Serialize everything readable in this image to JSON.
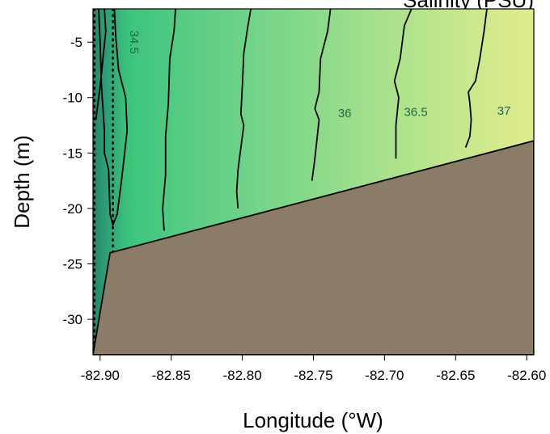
{
  "chart_data": {
    "type": "contour",
    "title": "Salinity (PSU)",
    "xlabel": "Longitude (°W)",
    "ylabel": "Depth (m)",
    "xlim": [
      -82.905,
      -82.595
    ],
    "ylim": [
      -33.2,
      -2
    ],
    "x_ticks": [
      -82.9,
      -82.85,
      -82.8,
      -82.75,
      -82.7,
      -82.65,
      -82.6
    ],
    "x_tick_labels": [
      "-82.90",
      "-82.85",
      "-82.80",
      "-82.75",
      "-82.70",
      "-82.65",
      "-82.60"
    ],
    "y_ticks": [
      -5,
      -10,
      -15,
      -20,
      -25,
      -30
    ],
    "y_tick_labels": [
      "-5",
      "-10",
      "-15",
      "-20",
      "-25",
      "-30"
    ],
    "bottom_profile": [
      {
        "x": -82.905,
        "depth": -33.2
      },
      {
        "x": -82.893,
        "depth": -24.0
      },
      {
        "x": -82.595,
        "depth": -13.9
      }
    ],
    "stations": [
      -82.904,
      -82.891,
      -82.594
    ],
    "contour_levels": [
      34.0,
      34.5,
      35.0,
      35.5,
      36.0,
      36.5,
      37.0
    ],
    "contour_labels": [
      {
        "text": "34.5",
        "level": 34.5,
        "x": -82.876,
        "y": -5.0
      },
      {
        "text": "36",
        "level": 36.0,
        "x": -82.728,
        "y": -11.4
      },
      {
        "text": "36.5",
        "level": 36.5,
        "x": -82.678,
        "y": -11.3
      },
      {
        "text": "37",
        "level": 37.0,
        "x": -82.616,
        "y": -11.2
      }
    ],
    "contour_lines": [
      {
        "level": 34.0,
        "points": [
          [
            -82.897,
            -2.0
          ],
          [
            -82.896,
            -4.0
          ],
          [
            -82.898,
            -6.5
          ],
          [
            -82.9,
            -9.0
          ],
          [
            -82.903,
            -12.0
          ]
        ]
      },
      {
        "level": 34.5,
        "points": [
          [
            -82.89,
            -2.0
          ],
          [
            -82.889,
            -4.5
          ],
          [
            -82.887,
            -7.5
          ],
          [
            -82.882,
            -10.0
          ],
          [
            -82.881,
            -13.0
          ],
          [
            -82.885,
            -17.5
          ],
          [
            -82.888,
            -20.5
          ],
          [
            -82.891,
            -21.5
          ],
          [
            -82.893,
            -20.5
          ],
          [
            -82.894,
            -16.5
          ],
          [
            -82.897,
            -15.0
          ],
          [
            -82.897,
            -13.0
          ],
          [
            -82.899,
            -9.0
          ],
          [
            -82.9,
            -5.0
          ],
          [
            -82.901,
            -2.0
          ]
        ]
      },
      {
        "level": 35.0,
        "points": [
          [
            -82.847,
            -2.0
          ],
          [
            -82.848,
            -4.0
          ],
          [
            -82.851,
            -6.5
          ],
          [
            -82.852,
            -10.5
          ],
          [
            -82.854,
            -13.5
          ],
          [
            -82.854,
            -17.0
          ],
          [
            -82.856,
            -20.0
          ],
          [
            -82.855,
            -22.0
          ]
        ]
      },
      {
        "level": 35.5,
        "points": [
          [
            -82.794,
            -2.0
          ],
          [
            -82.796,
            -3.5
          ],
          [
            -82.799,
            -6.0
          ],
          [
            -82.8,
            -9.0
          ],
          [
            -82.801,
            -11.5
          ],
          [
            -82.799,
            -12.5
          ],
          [
            -82.803,
            -16.5
          ],
          [
            -82.804,
            -18.5
          ],
          [
            -82.803,
            -20.0
          ]
        ]
      },
      {
        "level": 36.0,
        "points": [
          [
            -82.738,
            -2.0
          ],
          [
            -82.74,
            -4.0
          ],
          [
            -82.745,
            -6.5
          ],
          [
            -82.746,
            -9.5
          ],
          [
            -82.749,
            -11.0
          ],
          [
            -82.746,
            -12.0
          ],
          [
            -82.749,
            -15.5
          ],
          [
            -82.751,
            -17.5
          ]
        ]
      },
      {
        "level": 36.5,
        "points": [
          [
            -82.681,
            -2.0
          ],
          [
            -82.686,
            -3.5
          ],
          [
            -82.689,
            -6.5
          ],
          [
            -82.693,
            -8.5
          ],
          [
            -82.69,
            -10.0
          ],
          [
            -82.692,
            -12.5
          ],
          [
            -82.692,
            -14.0
          ],
          [
            -82.692,
            -15.5
          ]
        ]
      },
      {
        "level": 37.0,
        "points": [
          [
            -82.628,
            -2.0
          ],
          [
            -82.63,
            -4.0
          ],
          [
            -82.633,
            -6.5
          ],
          [
            -82.636,
            -8.5
          ],
          [
            -82.641,
            -9.5
          ],
          [
            -82.64,
            -10.5
          ],
          [
            -82.639,
            -12.0
          ],
          [
            -82.64,
            -13.5
          ],
          [
            -82.643,
            -14.5
          ]
        ]
      }
    ],
    "colors": {
      "band_lt_34": "#2a7f68",
      "band_34_34_5": "#2f9a74",
      "band_34_5_35": "#3cc47c",
      "band_35_35_5": "#59cc84",
      "band_35_5_36": "#7cd68a",
      "band_36_36_5": "#a0df8c",
      "band_36_5_37": "#c1e68d",
      "band_gt_37": "#e0ec8c",
      "bathymetry": "#8a7c66",
      "contour_line": "#000000",
      "station_dots": "#000000"
    }
  }
}
